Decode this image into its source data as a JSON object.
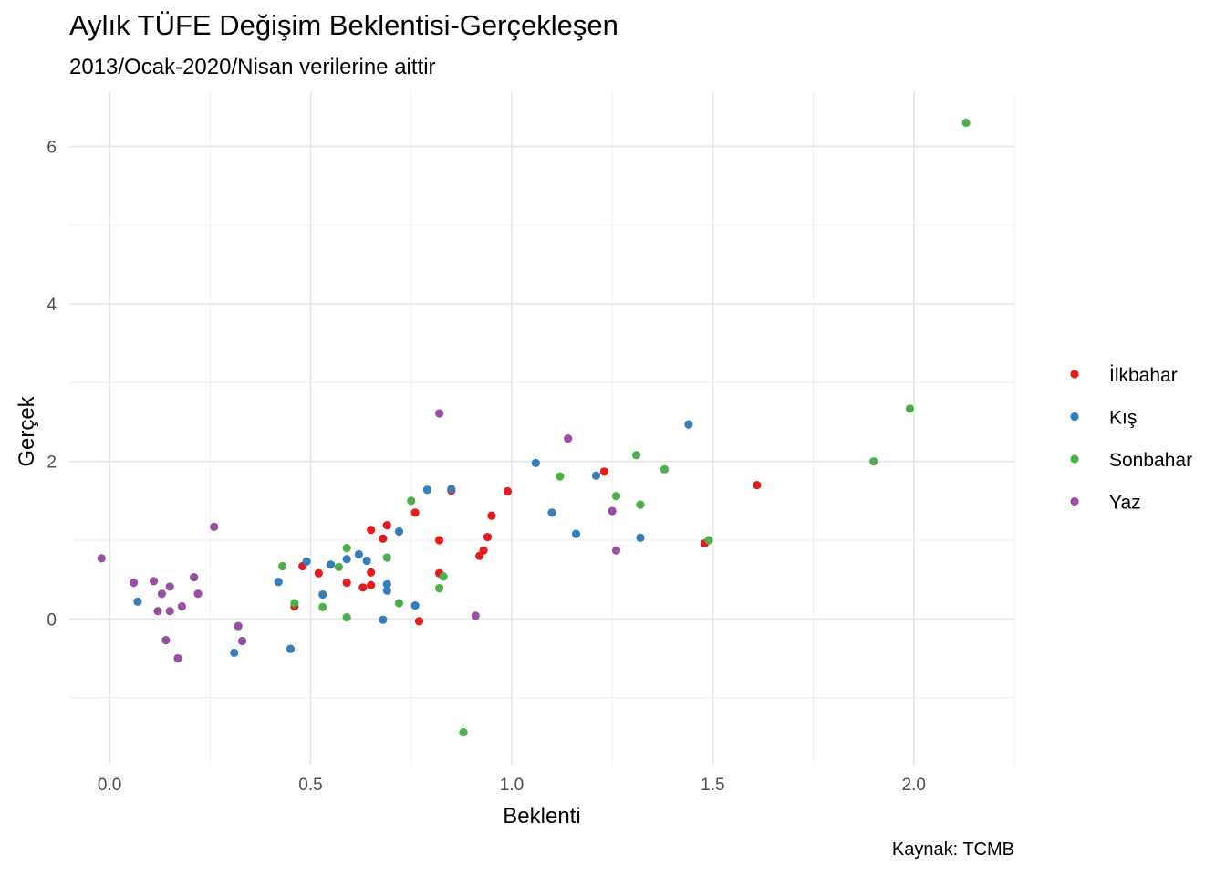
{
  "chart_data": {
    "type": "scatter",
    "title": "Aylık TÜFE Değişim Beklentisi-Gerçekleşen",
    "subtitle": "2013/Ocak-2020/Nisan verilerine aittir",
    "caption": "Kaynak: TCMB",
    "xlabel": "Beklenti",
    "ylabel": "Gerçek",
    "xlim": [
      -0.1,
      2.25
    ],
    "ylim": [
      -1.85,
      6.7
    ],
    "x_ticks": [
      "0.0",
      "0.5",
      "1.0",
      "1.5",
      "2.0"
    ],
    "x_tick_values": [
      0.0,
      0.5,
      1.0,
      1.5,
      2.0
    ],
    "y_ticks": [
      "0",
      "2",
      "4",
      "6"
    ],
    "y_tick_values": [
      0,
      2,
      4,
      6
    ],
    "grid": true,
    "legend_position": "right",
    "series": [
      {
        "name": "İlkbahar",
        "color": "#E41A1C",
        "points": [
          [
            0.46,
            0.16
          ],
          [
            0.48,
            0.67
          ],
          [
            0.52,
            0.58
          ],
          [
            0.59,
            0.46
          ],
          [
            0.63,
            0.4
          ],
          [
            0.65,
            0.43
          ],
          [
            0.65,
            0.59
          ],
          [
            0.65,
            1.13
          ],
          [
            0.68,
            1.02
          ],
          [
            0.69,
            1.19
          ],
          [
            0.76,
            1.35
          ],
          [
            0.77,
            -0.03
          ],
          [
            0.82,
            1.0
          ],
          [
            0.82,
            0.58
          ],
          [
            0.85,
            1.63
          ],
          [
            0.92,
            0.8
          ],
          [
            0.93,
            0.87
          ],
          [
            0.94,
            1.04
          ],
          [
            0.95,
            1.31
          ],
          [
            0.99,
            1.62
          ],
          [
            1.23,
            1.87
          ],
          [
            1.48,
            0.96
          ],
          [
            1.61,
            1.7
          ]
        ]
      },
      {
        "name": "Kış",
        "color": "#377EB8",
        "points": [
          [
            0.07,
            0.22
          ],
          [
            0.31,
            -0.43
          ],
          [
            0.42,
            0.47
          ],
          [
            0.45,
            -0.38
          ],
          [
            0.49,
            0.73
          ],
          [
            0.53,
            0.31
          ],
          [
            0.55,
            0.69
          ],
          [
            0.59,
            0.76
          ],
          [
            0.62,
            0.82
          ],
          [
            0.64,
            0.74
          ],
          [
            0.68,
            -0.01
          ],
          [
            0.69,
            0.44
          ],
          [
            0.69,
            0.36
          ],
          [
            0.72,
            1.11
          ],
          [
            0.76,
            0.17
          ],
          [
            0.79,
            1.64
          ],
          [
            0.83,
            0.54
          ],
          [
            0.85,
            1.65
          ],
          [
            1.06,
            1.98
          ],
          [
            1.1,
            1.35
          ],
          [
            1.16,
            1.08
          ],
          [
            1.21,
            1.82
          ],
          [
            1.32,
            1.03
          ],
          [
            1.44,
            2.47
          ]
        ]
      },
      {
        "name": "Sonbahar",
        "color": "#4DAF4A",
        "points": [
          [
            0.43,
            0.67
          ],
          [
            0.46,
            0.2
          ],
          [
            0.53,
            0.15
          ],
          [
            0.57,
            0.66
          ],
          [
            0.59,
            0.02
          ],
          [
            0.59,
            0.9
          ],
          [
            0.69,
            0.78
          ],
          [
            0.72,
            0.2
          ],
          [
            0.75,
            1.5
          ],
          [
            0.82,
            0.39
          ],
          [
            0.83,
            0.54
          ],
          [
            0.88,
            -1.44
          ],
          [
            1.12,
            1.81
          ],
          [
            1.26,
            1.56
          ],
          [
            1.31,
            2.08
          ],
          [
            1.32,
            1.45
          ],
          [
            1.38,
            1.9
          ],
          [
            1.49,
            1.0
          ],
          [
            1.9,
            2.0
          ],
          [
            1.99,
            2.67
          ],
          [
            2.13,
            6.3
          ]
        ]
      },
      {
        "name": "Yaz",
        "color": "#984EA3",
        "points": [
          [
            -0.02,
            0.77
          ],
          [
            0.06,
            0.46
          ],
          [
            0.11,
            0.48
          ],
          [
            0.12,
            0.1
          ],
          [
            0.13,
            0.32
          ],
          [
            0.14,
            -0.27
          ],
          [
            0.15,
            0.41
          ],
          [
            0.15,
            0.1
          ],
          [
            0.17,
            -0.5
          ],
          [
            0.18,
            0.16
          ],
          [
            0.21,
            0.53
          ],
          [
            0.22,
            0.32
          ],
          [
            0.26,
            1.17
          ],
          [
            0.32,
            -0.09
          ],
          [
            0.33,
            -0.28
          ],
          [
            0.82,
            2.61
          ],
          [
            0.91,
            0.04
          ],
          [
            1.14,
            2.29
          ],
          [
            1.25,
            1.37
          ],
          [
            1.26,
            0.87
          ]
        ]
      }
    ]
  }
}
